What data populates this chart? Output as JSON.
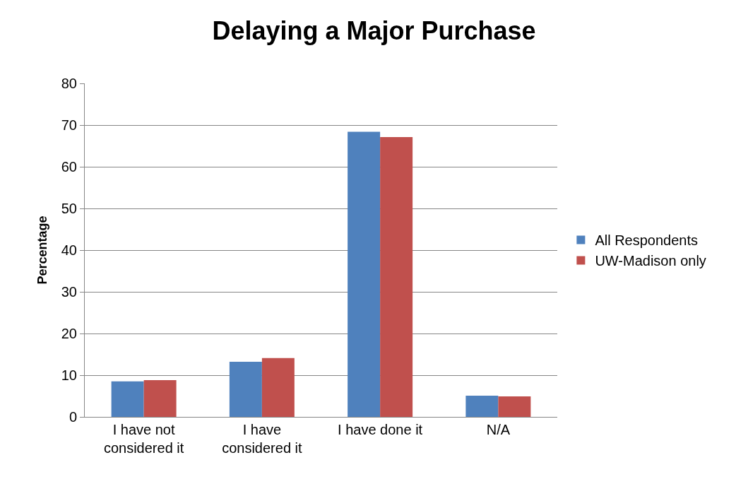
{
  "chart_data": {
    "type": "bar",
    "title": "Delaying a Major Purchase",
    "ylabel": "Percentage",
    "categories": [
      "I have not considered it",
      "I have considered it",
      "I have done it",
      "N/A"
    ],
    "series": [
      {
        "name": "All Respondents",
        "color": "#4f81bd",
        "values": [
          8.5,
          13.2,
          68.4,
          5.1
        ]
      },
      {
        "name": "UW-Madison only",
        "color": "#c0504d",
        "values": [
          8.8,
          14.1,
          67.1,
          4.9
        ]
      }
    ],
    "ylim": [
      0,
      80
    ],
    "yticks": [
      0,
      10,
      20,
      30,
      40,
      50,
      60,
      70,
      80
    ],
    "grid": "y",
    "legend": "right"
  }
}
